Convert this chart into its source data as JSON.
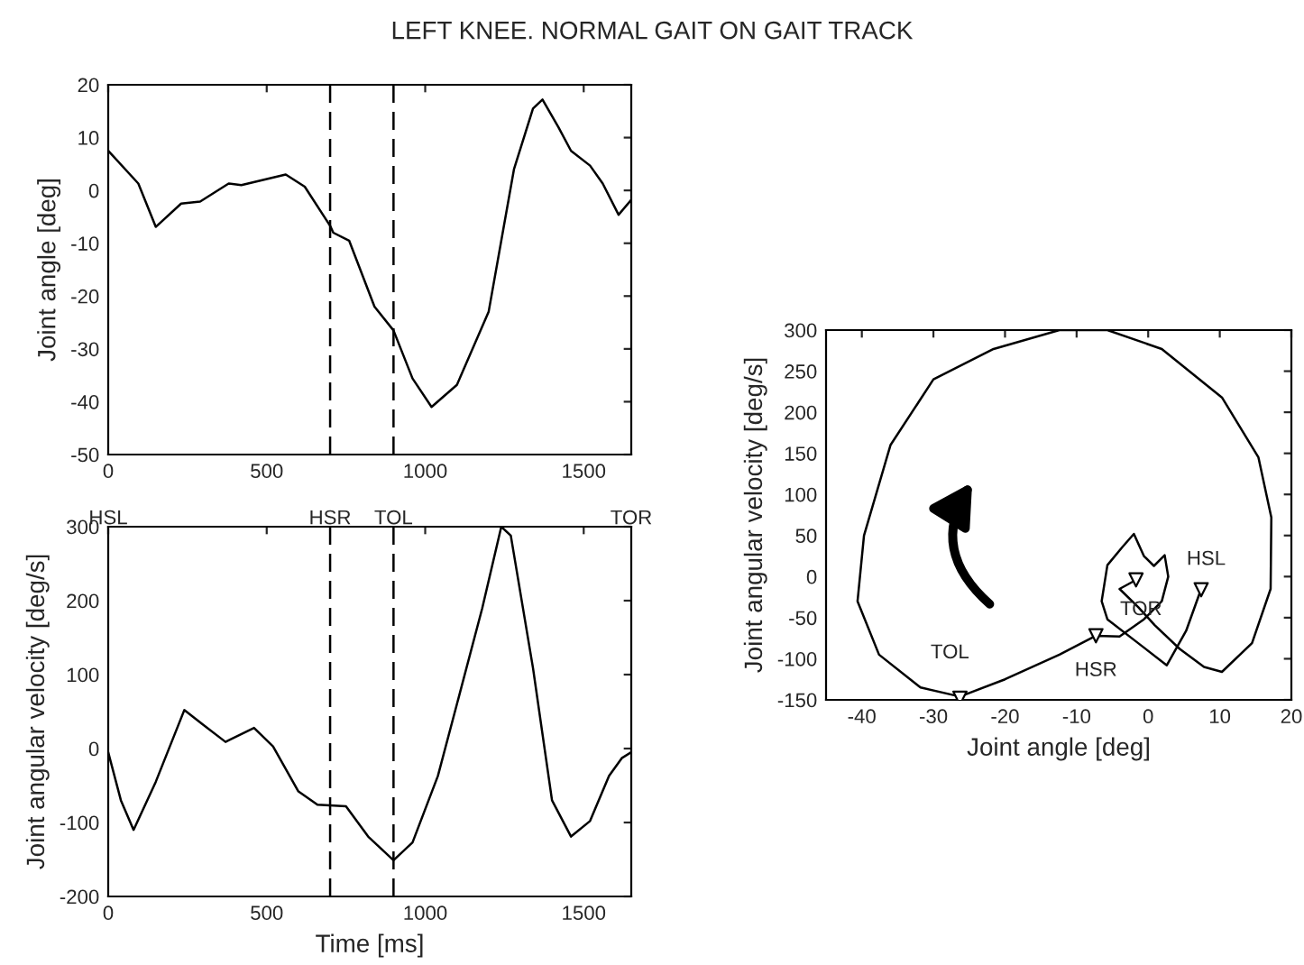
{
  "chart_data": [
    {
      "type": "line",
      "title": "LEFT KNEE. NORMAL GAIT ON GAIT TRACK",
      "ylabel": "Joint angle [deg]",
      "series": [
        {
          "color": "#000000",
          "x": [
            0,
            95,
            150,
            230,
            290,
            380,
            420,
            560,
            620,
            700,
            710,
            760,
            840,
            900,
            960,
            1020,
            1100,
            1200,
            1280,
            1340,
            1370,
            1420,
            1460,
            1520,
            1560,
            1610,
            1650
          ],
          "values": [
            7.5,
            1.3,
            -6.9,
            -2.5,
            -2.1,
            1.3,
            1,
            3,
            0.7,
            -6.7,
            -8,
            -9.5,
            -22,
            -26.5,
            -35.6,
            -41,
            -36.8,
            -23,
            4,
            15.5,
            17.2,
            12,
            7.5,
            4.7,
            1.3,
            -4.6,
            -1.8
          ]
        }
      ],
      "xlim": [
        0,
        1650
      ],
      "xticks": [
        0,
        500,
        1000,
        1500
      ],
      "ylim": [
        -50,
        20
      ],
      "yticks": [
        -50,
        -40,
        -30,
        -20,
        -10,
        0,
        10,
        20
      ],
      "ref_lines": [
        {
          "axis": "x",
          "value": 0,
          "label": "HSL"
        },
        {
          "axis": "x",
          "value": 700,
          "label": "HSR",
          "line_style": "dashed"
        },
        {
          "axis": "x",
          "value": 900,
          "label": "TOL",
          "line_style": "dashed"
        },
        {
          "axis": "x",
          "value": 1650,
          "label": "TOR"
        }
      ],
      "grid": false,
      "line_style": "solid"
    },
    {
      "type": "line",
      "xlabel": "Time [ms]",
      "ylabel": "Joint angular velocity [deg/s]",
      "series": [
        {
          "color": "#000000",
          "x": [
            0,
            40,
            80,
            150,
            240,
            300,
            370,
            460,
            520,
            600,
            660,
            750,
            820,
            900,
            960,
            1040,
            1100,
            1180,
            1240,
            1270,
            1340,
            1400,
            1460,
            1520,
            1580,
            1620,
            1650
          ],
          "values": [
            -5,
            -70,
            -110,
            -45,
            52,
            32,
            9,
            28,
            3,
            -58,
            -76,
            -78,
            -119,
            -151,
            -127,
            -37,
            60,
            190,
            300,
            288,
            109,
            -70,
            -119,
            -98,
            -37,
            -13,
            -5
          ]
        }
      ],
      "xlim": [
        0,
        1650
      ],
      "xticks": [
        0,
        500,
        1000,
        1500
      ],
      "ylim": [
        -200,
        300
      ],
      "yticks": [
        -200,
        -100,
        0,
        100,
        200,
        300
      ],
      "ref_lines": [
        {
          "axis": "x",
          "value": 700,
          "line_style": "dashed"
        },
        {
          "axis": "x",
          "value": 900,
          "line_style": "dashed"
        }
      ],
      "grid": false,
      "line_style": "solid"
    },
    {
      "type": "line",
      "xlabel": "Joint angle [deg]",
      "ylabel": "Joint angular velocity [deg/s]",
      "series": [
        {
          "color": "#000000",
          "x": [
            7.4,
            5.3,
            2.6,
            -1.4,
            -5.7,
            -6.5,
            -5.7,
            -3.6,
            -2.0,
            -0.6,
            0.8,
            2.3,
            2.8,
            1.9,
            -0.6,
            -4.0,
            -7.3,
            -12.4,
            -20,
            -26.3,
            -31.8,
            -37.6,
            -40.6,
            -39.7,
            -36,
            -30,
            -21.6,
            -12.4,
            -5.7,
            1.9,
            10.3,
            15.4,
            17.2,
            17.1,
            14.5,
            10.3,
            7.8,
            4.4,
            0.9,
            -1.4,
            -4,
            -1.7
          ],
          "values": [
            -15,
            -66,
            -108,
            -81,
            -52,
            -30,
            14,
            36,
            52,
            25,
            13,
            26,
            0,
            -30,
            -52,
            -73,
            -72,
            -95,
            -125,
            -146,
            -135,
            -95,
            -30,
            50,
            160,
            240,
            277,
            300,
            300,
            277,
            218,
            145,
            72,
            -15,
            -81,
            -116,
            -110,
            -88,
            -59,
            -37,
            -15,
            -4
          ]
        },
        {
          "type": "scatter",
          "color": "#000000",
          "marker": "triangle",
          "x": [
            7.4,
            -7.3,
            -1.7,
            -26.3
          ],
          "values": [
            -16,
            -72,
            -4,
            -148
          ]
        }
      ],
      "xlim": [
        -45,
        20
      ],
      "xticks": [
        -40,
        -30,
        -20,
        -10,
        0,
        10,
        20
      ],
      "ylim": [
        -150,
        300
      ],
      "yticks": [
        -150,
        -100,
        -50,
        0,
        50,
        100,
        150,
        200,
        250,
        300
      ],
      "annotations": [
        {
          "text": "HSL",
          "x": 7.4,
          "y": -16
        },
        {
          "text": "TOR",
          "x": -1.7,
          "y": -4
        },
        {
          "text": "HSR",
          "x": -7.3,
          "y": -72
        },
        {
          "text": "TOL",
          "x": -26.3,
          "y": -148
        }
      ],
      "grid": false,
      "line_style": "solid"
    }
  ]
}
